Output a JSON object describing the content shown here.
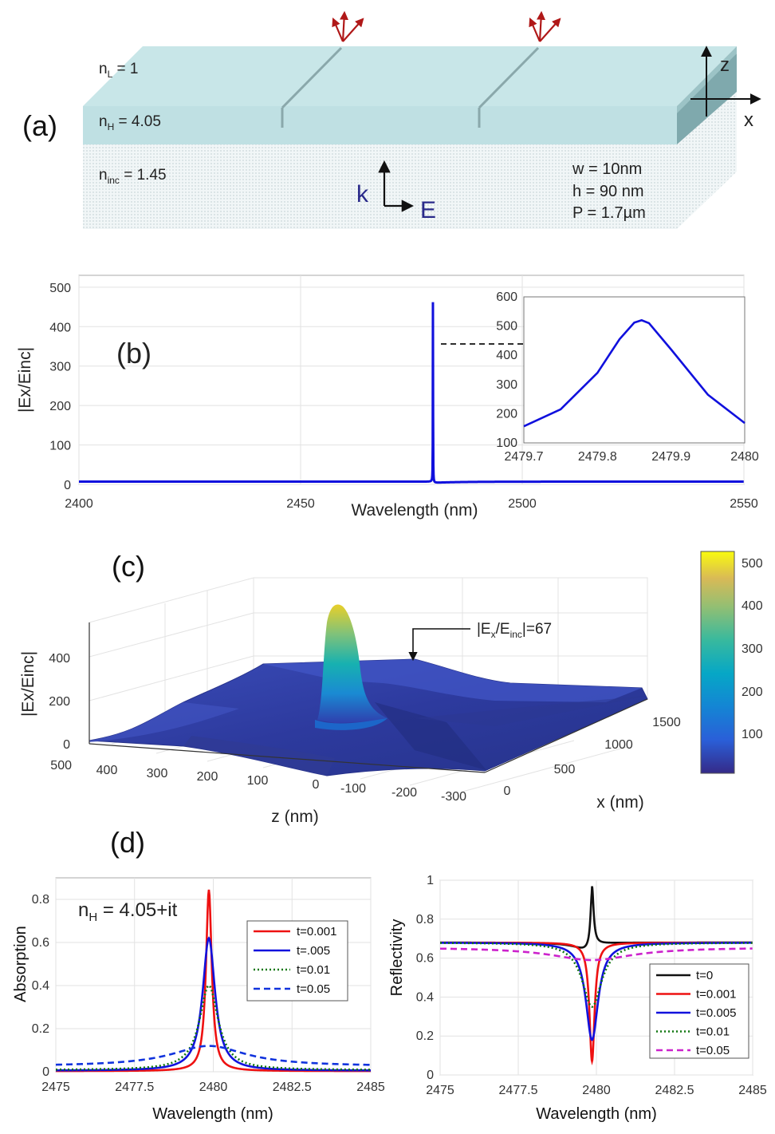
{
  "figure": {
    "panel_labels": [
      "(a)",
      "(b)",
      "(c)",
      "(d)"
    ]
  },
  "panel_a": {
    "layers": {
      "top": "n_L = 1",
      "top_base": "n",
      "top_sub": "L",
      "top_tail": " = 1",
      "middle_base": "n",
      "middle_sub": "H",
      "middle_tail": " = 4.05",
      "substrate_base": "n",
      "substrate_sub": "inc",
      "substrate_tail": " = 1.45"
    },
    "axes": {
      "z": "z",
      "x": "x"
    },
    "field": {
      "k": "k",
      "e": "E"
    },
    "params": [
      "w = 10nm",
      "h = 90 nm",
      "P = 1.7µm"
    ],
    "colors": {
      "top": "#c8e6e8",
      "middle": "#bfe0e3",
      "arrows": "#b01818",
      "field": "#2a2a8a"
    }
  },
  "panel_b": {
    "chart_data": {
      "type": "line",
      "xlabel": "Wavelength (nm)",
      "ylabel": "|Ex/Einc|",
      "xlim": [
        2400,
        2550
      ],
      "ylim": [
        0,
        530
      ],
      "x_ticks": [
        2400,
        2450,
        2500,
        2550
      ],
      "y_ticks": [
        0,
        100,
        200,
        300,
        400,
        500
      ],
      "grid": true,
      "series": [
        {
          "name": "|Ex/Einc|",
          "color": "#1010dd",
          "peak_x": 2479.86,
          "peak_y": 520,
          "baseline": 7
        }
      ],
      "inset": {
        "type": "line",
        "xlim": [
          2479.7,
          2480
        ],
        "ylim": [
          100,
          600
        ],
        "x_ticks": [
          "2479.7",
          "2479.8",
          "2479.9",
          "2480"
        ],
        "y_ticks": [
          "100",
          "200",
          "300",
          "400",
          "500",
          "600"
        ],
        "x": [
          2479.7,
          2479.75,
          2479.8,
          2479.83,
          2479.85,
          2479.86,
          2479.87,
          2479.9,
          2479.95,
          2480
        ],
        "y": [
          157,
          215,
          340,
          455,
          512,
          520,
          510,
          420,
          265,
          168
        ]
      }
    }
  },
  "panel_c": {
    "chart_data": {
      "type": "surface",
      "zlabel": "|Ex/Einc|",
      "xlabel": "x (nm)",
      "ylabel": "z (nm)",
      "z_ticks": [
        "0",
        "200",
        "400"
      ],
      "zaxis_extra": "500",
      "zdepth_ticks": [
        "400",
        "300",
        "200",
        "100",
        "0",
        "-100",
        "-200",
        "-300"
      ],
      "x_ticks": [
        "0",
        "500",
        "1000",
        "1500"
      ],
      "colorbar_ticks": [
        "100",
        "200",
        "300",
        "400",
        "500"
      ],
      "colormap": "parula",
      "annotation_base": "|E",
      "annotation_sub1": "x",
      "annotation_mid": "/E",
      "annotation_sub2": "inc",
      "annotation_tail": "|=67",
      "peak_value": 480,
      "plateau_value": 67
    }
  },
  "panel_d": {
    "absorption": {
      "chart_data": {
        "type": "line",
        "xlabel": "Wavelength (nm)",
        "ylabel": "Absorption",
        "xlim": [
          2475,
          2485
        ],
        "ylim": [
          0,
          0.9
        ],
        "x_ticks": [
          "2475",
          "2477.5",
          "2480",
          "2482.5",
          "2485"
        ],
        "y_ticks": [
          "0",
          "0.2",
          "0.4",
          "0.6",
          "0.8"
        ],
        "annotation_base": "n",
        "annotation_sub": "H",
        "annotation_tail": " = 4.05+it",
        "center": 2479.86,
        "series": [
          {
            "name": "t=0.001",
            "peak": 0.845,
            "hwhm": 0.11,
            "base": 0.003,
            "color": "#ee1111",
            "dash": "none"
          },
          {
            "name": "t=.005",
            "peak": 0.62,
            "hwhm": 0.24,
            "base": 0.005,
            "color": "#1111dd",
            "dash": "none"
          },
          {
            "name": "t=0.01",
            "peak": 0.4,
            "hwhm": 0.36,
            "base": 0.008,
            "color": "#117711",
            "dash": "dot"
          },
          {
            "name": "t=0.05",
            "peak": 0.12,
            "hwhm": 1.45,
            "base": 0.025,
            "color": "#1133dd",
            "dash": "dash"
          }
        ]
      }
    },
    "reflectivity": {
      "chart_data": {
        "type": "line",
        "xlabel": "Wavelength (nm)",
        "ylabel": "Reflectivity",
        "xlim": [
          2475,
          2485
        ],
        "ylim": [
          0,
          1
        ],
        "x_ticks": [
          "2475",
          "2477.5",
          "2480",
          "2482.5",
          "2485"
        ],
        "y_ticks": [
          "0",
          "0.2",
          "0.4",
          "0.6",
          "0.8",
          "1"
        ],
        "center": 2479.86,
        "series": [
          {
            "name": "t=0",
            "kind": "fano",
            "base": 0.68,
            "peak": 0.98,
            "min": 0.64,
            "hwhm": 0.06,
            "color": "#111111",
            "dash": "none"
          },
          {
            "name": "t=0.001",
            "kind": "dip",
            "base": 0.68,
            "min": 0.07,
            "hwhm": 0.1,
            "color": "#ee1111",
            "dash": "none"
          },
          {
            "name": "t=0.005",
            "kind": "dip",
            "base": 0.68,
            "min": 0.18,
            "hwhm": 0.24,
            "color": "#1111dd",
            "dash": "none"
          },
          {
            "name": "t=0.01",
            "kind": "dip",
            "base": 0.68,
            "min": 0.35,
            "hwhm": 0.38,
            "color": "#117711",
            "dash": "dot"
          },
          {
            "name": "t=0.05",
            "kind": "dip",
            "base": 0.655,
            "min": 0.59,
            "hwhm": 1.6,
            "color": "#cc22cc",
            "dash": "dash"
          }
        ]
      }
    }
  }
}
